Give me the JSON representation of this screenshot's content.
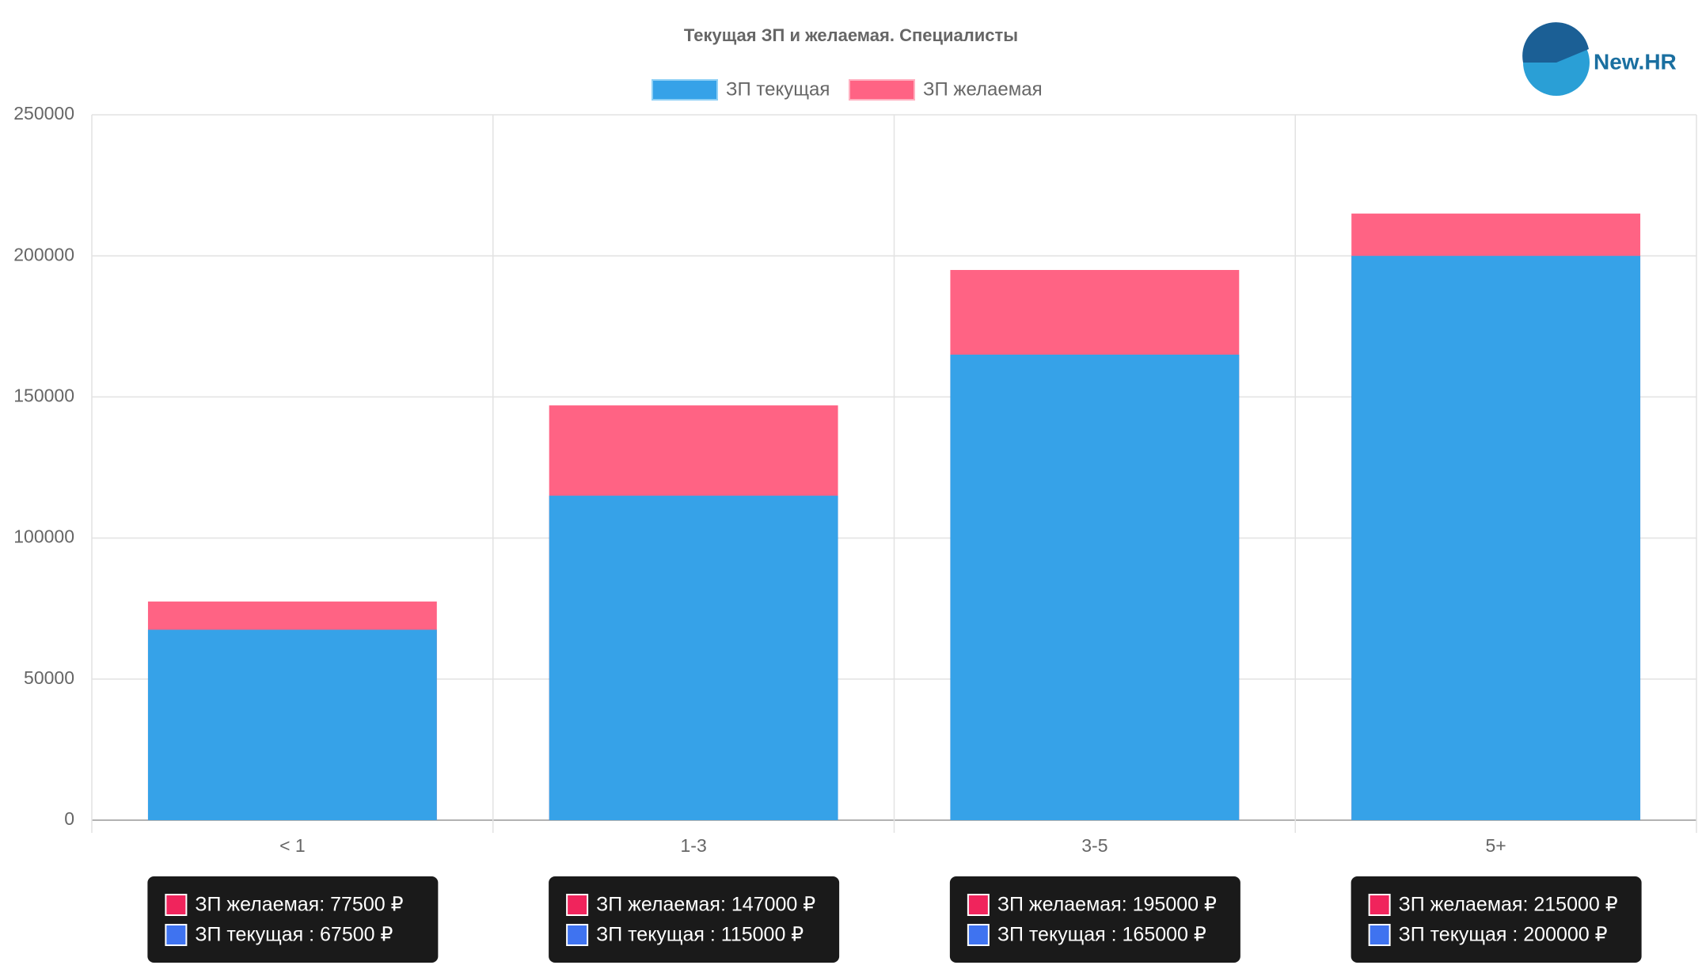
{
  "logo": "New.HR",
  "chart_data": {
    "type": "bar",
    "title": "Текущая ЗП и желаемая. Специалисты",
    "categories": [
      "< 1",
      "1-3",
      "3-5",
      "5+"
    ],
    "series": [
      {
        "name": "ЗП текущая",
        "color": "#36a2e8",
        "tooltip_color": "#3f73f0",
        "values": [
          67500,
          115000,
          165000,
          200000
        ],
        "value_labels": [
          "ЗП текущая  : 67500 ₽",
          "ЗП текущая  : 115000 ₽",
          "ЗП текущая  : 165000 ₽",
          "ЗП текущая  : 200000 ₽"
        ]
      },
      {
        "name": "ЗП желаемая",
        "color": "#ff6384",
        "tooltip_color": "#f0245c",
        "values": [
          77500,
          147000,
          195000,
          215000
        ],
        "value_labels": [
          "ЗП желаемая: 77500 ₽",
          "ЗП желаемая: 147000 ₽",
          "ЗП желаемая: 195000 ₽",
          "ЗП желаемая: 215000 ₽"
        ]
      }
    ],
    "ylim": [
      0,
      250000
    ],
    "yticks": [
      0,
      50000,
      100000,
      150000,
      200000,
      250000
    ],
    "grid": true
  }
}
